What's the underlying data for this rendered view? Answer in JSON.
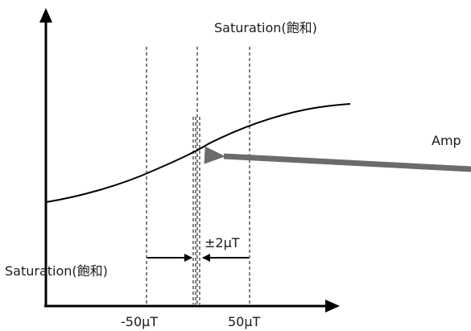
{
  "labels": {
    "saturation_top": "Saturation(飽和)",
    "saturation_left": "Saturation(飽和)",
    "amp": "Amp",
    "range": "±2μT",
    "neg_tick": "-50μT",
    "pos_tick": "50μT"
  },
  "colors": {
    "line": "#000000",
    "arrow": "#6b6b6b",
    "text": "#1a1a1a"
  }
}
